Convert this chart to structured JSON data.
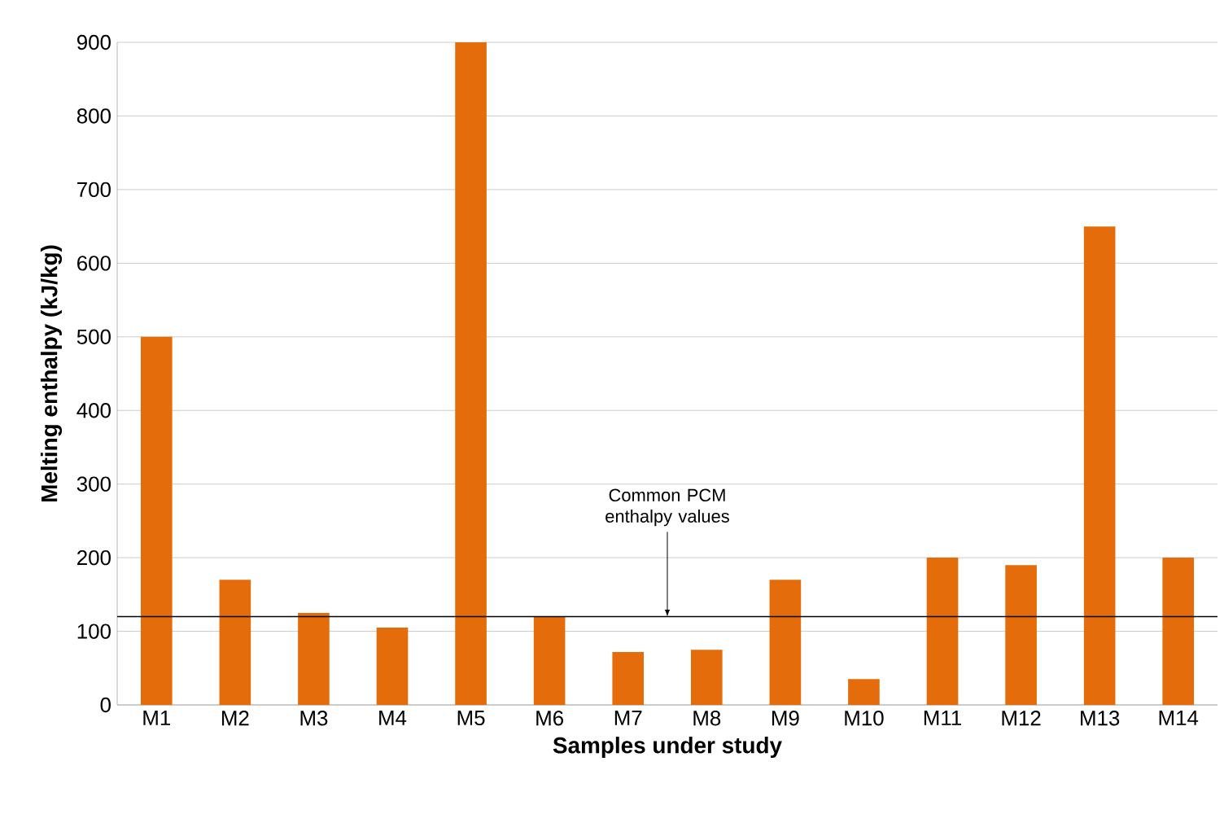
{
  "chart_data": {
    "type": "bar",
    "xlabel": "Samples under study",
    "ylabel": "Melting enthalpy (kJ/kg)",
    "categories": [
      "M1",
      "M2",
      "M3",
      "M4",
      "M5",
      "M6",
      "M7",
      "M8",
      "M9",
      "M10",
      "M11",
      "M12",
      "M13",
      "M14"
    ],
    "values": [
      500,
      170,
      125,
      105,
      900,
      120,
      72,
      75,
      170,
      35,
      200,
      190,
      650,
      200
    ],
    "color": "#e46c0a",
    "ylim": [
      0,
      900
    ],
    "yticks": [
      0,
      100,
      200,
      300,
      400,
      500,
      600,
      700,
      800,
      900
    ],
    "grid": "y",
    "ref_lines": [
      {
        "axis": "y",
        "value": 120,
        "label": "Common PCM enthalpy values",
        "color": "#000000"
      }
    ]
  }
}
